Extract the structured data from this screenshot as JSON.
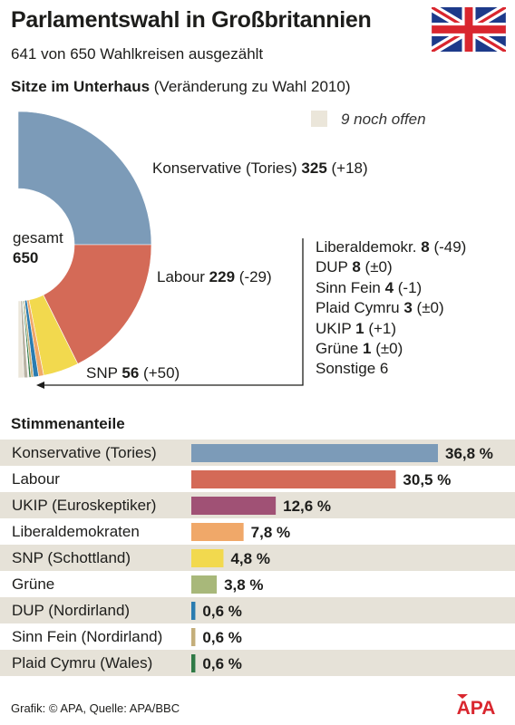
{
  "header": {
    "title": "Parlamentswahl in Großbritannien",
    "subtitle": "641 von 650 Wahlkreisen ausgezählt",
    "seats_heading_bold": "Sitze im Unterhaus",
    "seats_heading_rest": " (Veränderung zu Wahl 2010)"
  },
  "flag": {
    "icon": "union-jack-flag-icon",
    "colors": {
      "blue": "#1d3a8a",
      "red": "#d9262e",
      "white": "#ffffff"
    }
  },
  "chart_data": [
    {
      "type": "pie",
      "variant": "half-donut",
      "total_label": "gesamt",
      "total": 650,
      "open": {
        "value": 9,
        "label": "9 noch offen",
        "color": "#ebe6da"
      },
      "slices": [
        {
          "name": "Konservative (Tories)",
          "value": 325,
          "change": "(+18)",
          "color": "#7c9bb8"
        },
        {
          "name": "Labour",
          "value": 229,
          "change": "(-29)",
          "color": "#d46a57"
        },
        {
          "name": "SNP",
          "value": 56,
          "change": "(+50)",
          "color": "#f2d94e"
        },
        {
          "name": "Liberaldemokr.",
          "value": 8,
          "change": "(-49)",
          "color": "#f0a869"
        },
        {
          "name": "DUP",
          "value": 8,
          "change": "(±0)",
          "color": "#2a7cb0"
        },
        {
          "name": "Sinn Fein",
          "value": 4,
          "change": "(-1)",
          "color": "#c4ae7a"
        },
        {
          "name": "Plaid Cymru",
          "value": 3,
          "change": "(±0)",
          "color": "#2f7a45"
        },
        {
          "name": "UKIP",
          "value": 1,
          "change": "(+1)",
          "color": "#a05175"
        },
        {
          "name": "Grüne",
          "value": 1,
          "change": "(±0)",
          "color": "#a8b87a"
        },
        {
          "name": "Sonstige",
          "value": 6,
          "change": "",
          "color": "#b9b3a4"
        }
      ]
    },
    {
      "type": "bar",
      "orientation": "horizontal",
      "title": "Stimmenanteile",
      "categories": [
        "Konservative (Tories)",
        "Labour",
        "UKIP (Euroskeptiker)",
        "Liberaldemokraten",
        "SNP (Schottland)",
        "Grüne",
        "DUP (Nordirland)",
        "Sinn Fein (Nordirland)",
        "Plaid Cymru (Wales)"
      ],
      "values": [
        36.8,
        30.5,
        12.6,
        7.8,
        4.8,
        3.8,
        0.6,
        0.6,
        0.6
      ],
      "value_labels": [
        "36,8 %",
        "30,5 %",
        "12,6 %",
        "7,8 %",
        "4,8 %",
        "3,8 %",
        "0,6 %",
        "0,6 %",
        "0,6 %"
      ],
      "colors": [
        "#7c9bb8",
        "#d46a57",
        "#a05175",
        "#f0a869",
        "#f2d94e",
        "#a8b87a",
        "#2a7cb0",
        "#c4ae7a",
        "#2f7a45"
      ],
      "row_shade": "#e6e2d8"
    }
  ],
  "footer": {
    "source": "Grafik: © APA, Quelle: APA/BBC"
  },
  "logo": {
    "text": "APA",
    "icon": "apa-logo-icon",
    "color": "#d9262e"
  }
}
